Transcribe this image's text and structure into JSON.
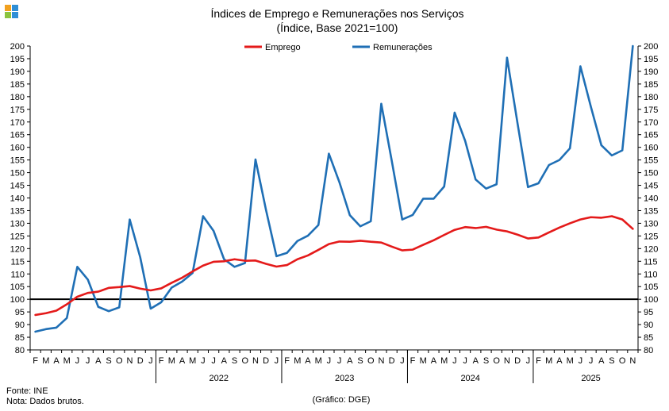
{
  "logo": {
    "colors": [
      "#f2a11f",
      "#8cc43f",
      "#2f8fd6",
      "#2f8fd6"
    ]
  },
  "footer": {
    "source": "Fonte: INE",
    "note": "Nota: Dados brutos.",
    "credit": "(Gráfico: DGE)"
  },
  "chart_data": {
    "type": "line",
    "title": "Índices de Emprego e Remunerações nos Serviços",
    "subtitle": "(Índice, Base 2021=100)",
    "ylim": [
      80,
      200
    ],
    "yticks": [
      80,
      85,
      90,
      95,
      100,
      105,
      110,
      115,
      120,
      125,
      130,
      135,
      140,
      145,
      150,
      155,
      160,
      165,
      170,
      175,
      180,
      185,
      190,
      195,
      200
    ],
    "reference_line": 100,
    "legend_position": "top",
    "categories": [
      "F",
      "M",
      "A",
      "M",
      "J",
      "J",
      "A",
      "S",
      "O",
      "N",
      "D",
      "J",
      "F",
      "M",
      "A",
      "M",
      "J",
      "J",
      "A",
      "S",
      "O",
      "N",
      "D",
      "J",
      "F",
      "M",
      "A",
      "M",
      "J",
      "J",
      "A",
      "S",
      "O",
      "N",
      "D",
      "J",
      "F",
      "M",
      "A",
      "M",
      "J",
      "J",
      "A",
      "S",
      "O",
      "N",
      "D",
      "J",
      "F",
      "M",
      "A",
      "M",
      "J",
      "J",
      "A",
      "S",
      "O",
      "N"
    ],
    "years": [
      {
        "label": "2022",
        "start": 12,
        "end": 23
      },
      {
        "label": "2023",
        "start": 24,
        "end": 35
      },
      {
        "label": "2024",
        "start": 36,
        "end": 47
      },
      {
        "label": "2025",
        "start": 48,
        "end": 58
      }
    ],
    "series": [
      {
        "name": "Emprego",
        "color": "#e41a1a",
        "values": [
          93.8,
          94.5,
          95.5,
          98.0,
          101.0,
          102.5,
          103.0,
          104.5,
          104.8,
          105.2,
          104.2,
          103.5,
          104.3,
          106.5,
          108.5,
          111.0,
          113.3,
          114.8,
          115.0,
          115.8,
          115.2,
          115.3,
          114.0,
          112.9,
          113.5,
          115.8,
          117.3,
          119.5,
          121.8,
          122.8,
          122.7,
          123.1,
          122.7,
          122.4,
          120.8,
          119.3,
          119.6,
          121.5,
          123.3,
          125.4,
          127.4,
          128.5,
          128.1,
          128.6,
          127.5,
          126.8,
          125.5,
          124.0,
          124.4,
          126.4,
          128.3,
          130.0,
          131.5,
          132.4,
          132.2,
          132.8,
          131.5,
          127.8
        ]
      },
      {
        "name": "Remunerações",
        "color": "#1f6fb5",
        "values": [
          87.2,
          88.2,
          88.8,
          92.6,
          112.8,
          107.8,
          97.0,
          95.3,
          96.8,
          131.5,
          116.6,
          96.3,
          98.8,
          104.6,
          107.0,
          110.4,
          132.8,
          127.0,
          115.8,
          112.8,
          114.3,
          155.2,
          135.3,
          117.0,
          118.3,
          123.0,
          125.1,
          129.3,
          157.5,
          146.3,
          133.2,
          128.8,
          130.8,
          177.2,
          154.7,
          131.5,
          133.3,
          139.7,
          139.7,
          144.5,
          173.7,
          162.6,
          147.3,
          143.7,
          145.4,
          195.4,
          169.5,
          144.3,
          145.8,
          153.0,
          155.0,
          159.6,
          192.0,
          176.0,
          160.8,
          156.8,
          158.8,
          200.0
        ]
      }
    ]
  }
}
